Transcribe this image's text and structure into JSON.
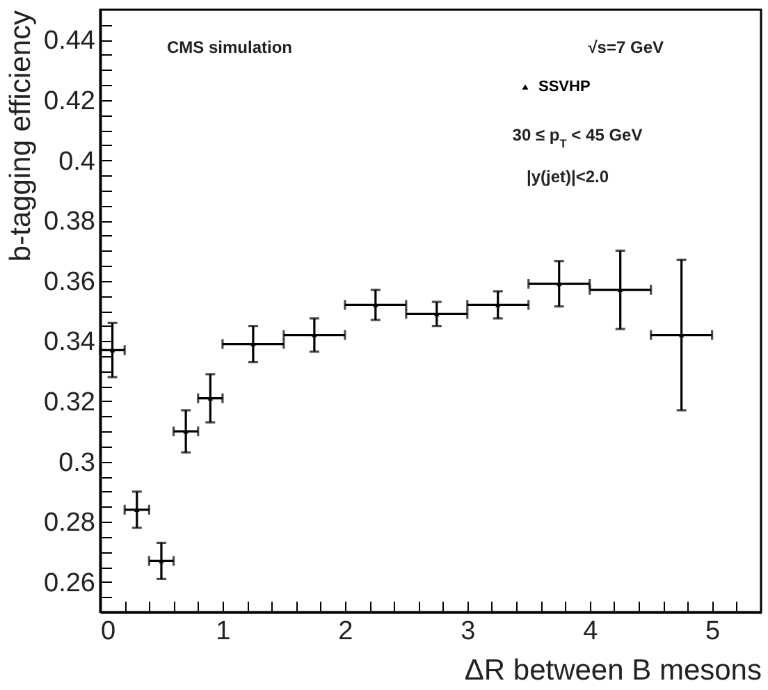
{
  "chart_data": {
    "type": "scatter",
    "xlabel": "ΔR between B mesons",
    "ylabel": "b-tagging efficiency",
    "x": [
      0.1,
      0.3,
      0.5,
      0.7,
      0.9,
      1.25,
      1.75,
      2.25,
      2.75,
      3.25,
      3.75,
      4.25,
      4.75
    ],
    "series": [
      {
        "name": "SSVHP",
        "color": "#000000",
        "values": [
          0.337,
          0.284,
          0.267,
          0.31,
          0.321,
          0.339,
          0.342,
          0.352,
          0.349,
          0.352,
          0.359,
          0.357,
          0.342
        ],
        "errors": [
          0.009,
          0.006,
          0.006,
          0.007,
          0.008,
          0.006,
          0.0055,
          0.005,
          0.004,
          0.0045,
          0.0075,
          0.013,
          0.025
        ],
        "xerrors": [
          0.1,
          0.1,
          0.1,
          0.1,
          0.1,
          0.25,
          0.25,
          0.25,
          0.25,
          0.25,
          0.25,
          0.25,
          0.25
        ]
      }
    ],
    "xlim": [
      0,
      5.4
    ],
    "ylim": [
      0.25,
      0.45
    ],
    "xticks": [
      0,
      {
        "value": 0.2,
        "label": null
      },
      {
        "value": 0.4,
        "label": null
      },
      {
        "value": 0.6,
        "label": null
      },
      {
        "value": 0.8,
        "label": null
      },
      1,
      {
        "value": 1.2,
        "label": null
      },
      {
        "value": 1.4,
        "label": null
      },
      {
        "value": 1.6,
        "label": null
      },
      {
        "value": 1.8,
        "label": null
      },
      2,
      {
        "value": 2.2,
        "label": null
      },
      {
        "value": 2.4,
        "label": null
      },
      {
        "value": 2.6,
        "label": null
      },
      {
        "value": 2.8,
        "label": null
      },
      3,
      {
        "value": 3.2,
        "label": null
      },
      {
        "value": 3.4,
        "label": null
      },
      {
        "value": 3.6,
        "label": null
      },
      {
        "value": 3.8,
        "label": null
      },
      4,
      {
        "value": 4.2,
        "label": null
      },
      {
        "value": 4.4,
        "label": null
      },
      {
        "value": 4.6,
        "label": null
      },
      {
        "value": 4.8,
        "label": null
      },
      5,
      {
        "value": 5.2,
        "label": null
      }
    ],
    "yticks": [
      {
        "value": 0.255,
        "label": null
      },
      0.26,
      {
        "value": 0.265,
        "label": null
      },
      {
        "value": 0.27,
        "label": null
      },
      {
        "value": 0.275,
        "label": null
      },
      0.28,
      {
        "value": 0.285,
        "label": null
      },
      {
        "value": 0.29,
        "label": null
      },
      {
        "value": 0.295,
        "label": null
      },
      0.3,
      {
        "value": 0.305,
        "label": null
      },
      {
        "value": 0.31,
        "label": null
      },
      {
        "value": 0.315,
        "label": null
      },
      0.32,
      {
        "value": 0.325,
        "label": null
      },
      {
        "value": 0.33,
        "label": null
      },
      {
        "value": 0.335,
        "label": null
      },
      0.34,
      {
        "value": 0.345,
        "label": null
      },
      {
        "value": 0.35,
        "label": null
      },
      {
        "value": 0.355,
        "label": null
      },
      0.36,
      {
        "value": 0.365,
        "label": null
      },
      {
        "value": 0.37,
        "label": null
      },
      {
        "value": 0.375,
        "label": null
      },
      0.38,
      {
        "value": 0.385,
        "label": null
      },
      {
        "value": 0.39,
        "label": null
      },
      {
        "value": 0.395,
        "label": null
      },
      0.4,
      {
        "value": 0.405,
        "label": null
      },
      {
        "value": 0.41,
        "label": null
      },
      {
        "value": 0.415,
        "label": null
      },
      0.42,
      {
        "value": 0.425,
        "label": null
      },
      {
        "value": 0.43,
        "label": null
      },
      {
        "value": 0.435,
        "label": null
      },
      0.44,
      {
        "value": 0.445,
        "label": null
      }
    ],
    "marker": "triangle",
    "legend": "top right",
    "grid": false,
    "annotations": [
      "CMS simulation",
      "√s=7 GeV",
      "30 ≤ p$_{T}$ < 45 GeV",
      "|y(jet)|<2.0"
    ]
  }
}
